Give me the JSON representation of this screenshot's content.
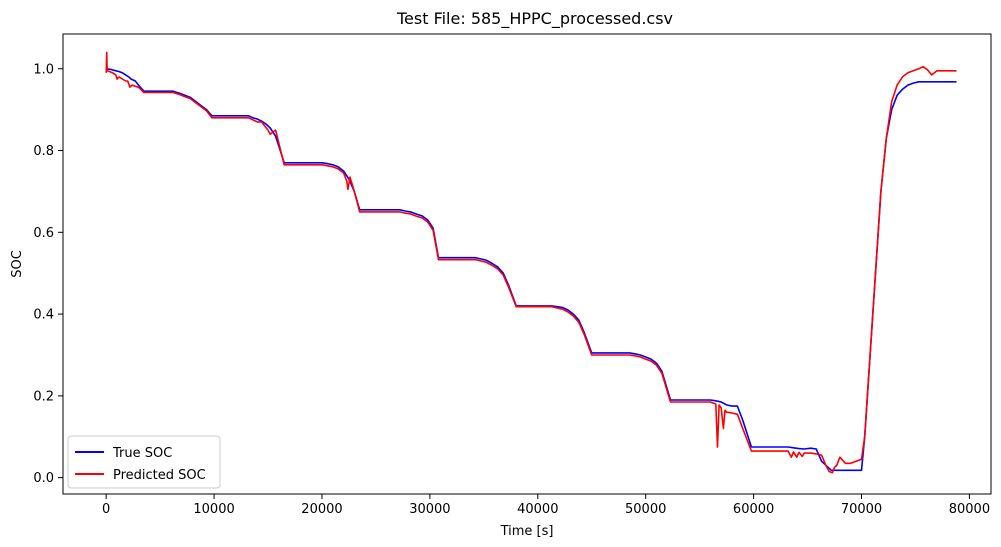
{
  "chart_data": {
    "type": "line",
    "title": "Test File: 585_HPPC_processed.csv",
    "xlabel": "Time [s]",
    "ylabel": "SOC",
    "xlim": [
      -4000,
      82000
    ],
    "ylim": [
      -0.04,
      1.085
    ],
    "xticks": [
      0,
      10000,
      20000,
      30000,
      40000,
      50000,
      60000,
      70000,
      80000
    ],
    "xtick_labels": [
      "0",
      "10000",
      "20000",
      "30000",
      "40000",
      "50000",
      "60000",
      "70000",
      "80000"
    ],
    "yticks": [
      0.0,
      0.2,
      0.4,
      0.6,
      0.8,
      1.0
    ],
    "ytick_labels": [
      "0.0",
      "0.2",
      "0.4",
      "0.6",
      "0.8",
      "1.0"
    ],
    "grid": false,
    "legend": {
      "position": "lower-left"
    },
    "series": [
      {
        "name": "True SOC",
        "color": "#0000ff",
        "x": [
          0,
          500,
          900,
          1200,
          1500,
          1800,
          2100,
          2300,
          2700,
          3000,
          3500,
          6200,
          6800,
          7300,
          7800,
          8300,
          8800,
          9300,
          9800,
          13200,
          13600,
          14000,
          14400,
          14800,
          15200,
          15700,
          16500,
          20000,
          20500,
          21000,
          21500,
          22000,
          22500,
          23000,
          23500,
          27200,
          27700,
          28200,
          28700,
          29300,
          29800,
          30300,
          30800,
          34200,
          34700,
          35200,
          35700,
          36300,
          36800,
          37300,
          38000,
          41300,
          41800,
          42300,
          42800,
          43300,
          43800,
          44300,
          45000,
          48500,
          49000,
          49500,
          50000,
          50500,
          51000,
          51500,
          52300,
          56000,
          56500,
          57000,
          57500,
          58000,
          58500,
          59000,
          59800,
          63200,
          63700,
          64200,
          64700,
          65300,
          65800,
          66300,
          67200,
          70000,
          70300,
          70800,
          71300,
          71800,
          72300,
          72800,
          73300,
          73800,
          74300,
          74800,
          75300,
          76000,
          77000,
          78800
        ],
        "y": [
          1.0,
          0.998,
          0.995,
          0.993,
          0.99,
          0.985,
          0.98,
          0.975,
          0.97,
          0.96,
          0.945,
          0.945,
          0.94,
          0.935,
          0.93,
          0.92,
          0.91,
          0.9,
          0.885,
          0.885,
          0.88,
          0.877,
          0.872,
          0.865,
          0.855,
          0.835,
          0.77,
          0.77,
          0.768,
          0.765,
          0.76,
          0.75,
          0.73,
          0.7,
          0.655,
          0.655,
          0.652,
          0.65,
          0.645,
          0.64,
          0.63,
          0.61,
          0.538,
          0.538,
          0.535,
          0.532,
          0.525,
          0.515,
          0.5,
          0.47,
          0.42,
          0.42,
          0.418,
          0.416,
          0.41,
          0.4,
          0.385,
          0.355,
          0.305,
          0.305,
          0.303,
          0.3,
          0.295,
          0.29,
          0.28,
          0.26,
          0.19,
          0.19,
          0.188,
          0.185,
          0.178,
          0.175,
          0.175,
          0.14,
          0.075,
          0.075,
          0.073,
          0.071,
          0.07,
          0.072,
          0.07,
          0.04,
          0.018,
          0.018,
          0.1,
          0.3,
          0.5,
          0.7,
          0.83,
          0.9,
          0.935,
          0.95,
          0.96,
          0.965,
          0.968,
          0.968,
          0.968,
          0.968
        ]
      },
      {
        "name": "Predicted SOC",
        "color": "#ff0000",
        "x": [
          0,
          50,
          100,
          400,
          600,
          900,
          1000,
          1200,
          1500,
          1800,
          2000,
          2200,
          2400,
          2700,
          3000,
          3500,
          6200,
          6800,
          7300,
          7800,
          8300,
          8800,
          9300,
          9800,
          13200,
          13600,
          14000,
          14400,
          14700,
          15000,
          15200,
          15700,
          16500,
          20000,
          20500,
          21000,
          21500,
          22000,
          22300,
          22400,
          22600,
          23000,
          23500,
          27200,
          27700,
          28200,
          28700,
          29300,
          29800,
          30300,
          30800,
          34200,
          34700,
          35200,
          35700,
          36300,
          36800,
          37300,
          38000,
          41300,
          41800,
          42300,
          42800,
          43300,
          43800,
          44300,
          45000,
          48500,
          49000,
          49500,
          50000,
          50500,
          51000,
          51500,
          52300,
          56000,
          56500,
          56650,
          56800,
          57000,
          57200,
          57350,
          57500,
          58000,
          58500,
          59000,
          59800,
          63200,
          63500,
          63700,
          64000,
          64200,
          64500,
          64700,
          65300,
          65800,
          66300,
          66700,
          67000,
          67300,
          67500,
          67700,
          68000,
          68500,
          69000,
          69500,
          70000,
          70300,
          70800,
          71300,
          71800,
          72300,
          72800,
          73300,
          73800,
          74300,
          74800,
          75300,
          75700,
          76100,
          76500,
          77000,
          78800
        ],
        "y": [
          0.99,
          1.04,
          0.995,
          0.992,
          0.99,
          0.985,
          0.975,
          0.98,
          0.975,
          0.97,
          0.97,
          0.955,
          0.96,
          0.957,
          0.955,
          0.942,
          0.942,
          0.937,
          0.932,
          0.927,
          0.917,
          0.907,
          0.897,
          0.88,
          0.88,
          0.875,
          0.87,
          0.87,
          0.86,
          0.85,
          0.84,
          0.85,
          0.765,
          0.765,
          0.763,
          0.76,
          0.755,
          0.745,
          0.725,
          0.705,
          0.735,
          0.7,
          0.65,
          0.65,
          0.647,
          0.645,
          0.64,
          0.635,
          0.625,
          0.605,
          0.533,
          0.533,
          0.53,
          0.527,
          0.52,
          0.51,
          0.495,
          0.465,
          0.418,
          0.418,
          0.415,
          0.412,
          0.405,
          0.395,
          0.38,
          0.35,
          0.3,
          0.3,
          0.298,
          0.295,
          0.29,
          0.285,
          0.275,
          0.255,
          0.185,
          0.185,
          0.18,
          0.075,
          0.178,
          0.17,
          0.12,
          0.165,
          0.16,
          0.158,
          0.155,
          0.12,
          0.065,
          0.065,
          0.05,
          0.063,
          0.05,
          0.062,
          0.052,
          0.06,
          0.06,
          0.058,
          0.055,
          0.03,
          0.015,
          0.012,
          0.025,
          0.03,
          0.05,
          0.035,
          0.035,
          0.04,
          0.045,
          0.1,
          0.3,
          0.5,
          0.7,
          0.83,
          0.92,
          0.96,
          0.98,
          0.99,
          0.995,
          1.0,
          1.005,
          0.998,
          0.985,
          0.995,
          0.995
        ]
      }
    ]
  }
}
